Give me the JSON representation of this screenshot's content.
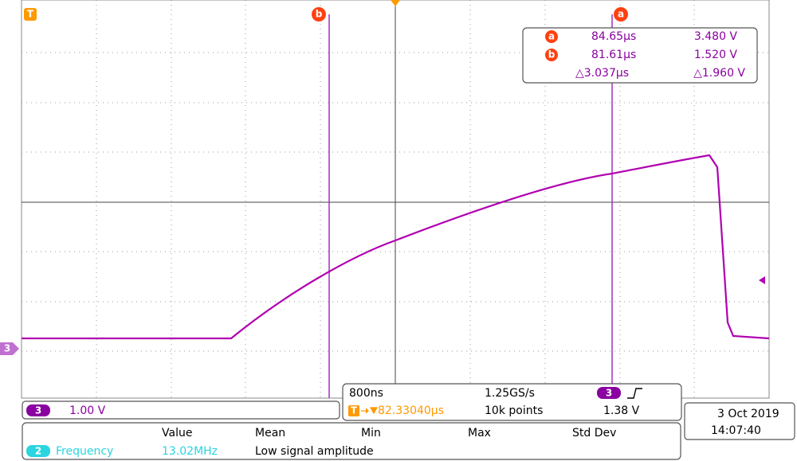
{
  "graticule": {
    "trigger_marker": "T",
    "cursor_a_marker": "a",
    "cursor_b_marker": "b",
    "channel_marker": "3"
  },
  "cursor_readout": {
    "rows": [
      {
        "marker": "a",
        "time": "84.65µs",
        "voltage": "3.480 V"
      },
      {
        "marker": "b",
        "time": "81.61µs",
        "voltage": "1.520 V"
      }
    ],
    "delta": {
      "time": "△3.037µs",
      "voltage": "△1.960 V"
    }
  },
  "channel": {
    "number": "3",
    "scale": "1.00 V"
  },
  "timebase": {
    "scale": "800ns",
    "sample_rate": "1.25GS/s",
    "trigger_channel": "3",
    "trigger_position": "82.33040µs",
    "record_length": "10k points",
    "trigger_level": "1.38 V"
  },
  "datetime": {
    "date": "3 Oct 2019",
    "time": "14:07:40"
  },
  "measurements": {
    "headers": [
      "Value",
      "Mean",
      "Min",
      "Max",
      "Std Dev"
    ],
    "rows": [
      {
        "source": "2",
        "name": "Frequency",
        "value": "13.02MHz",
        "note": "Low signal amplitude"
      }
    ]
  }
}
